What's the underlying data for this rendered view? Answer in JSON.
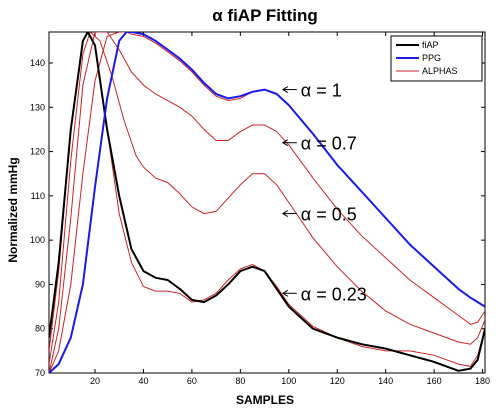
{
  "chart_data": {
    "type": "line",
    "title": "α fiAP Fitting",
    "xlabel": "SAMPLES",
    "ylabel": "Normalized mmHg",
    "xlim": [
      1,
      181
    ],
    "ylim": [
      70,
      147
    ],
    "x_ticks": [
      20,
      40,
      60,
      80,
      100,
      120,
      140,
      160,
      180
    ],
    "y_ticks": [
      70,
      80,
      90,
      100,
      110,
      120,
      130,
      140
    ],
    "grid": false,
    "legend_position": "top-right",
    "colors": {
      "fiAP": "#000000",
      "PPG": "#1a1ae6",
      "ALPHAS": "#cc2222"
    },
    "series": [
      {
        "name": "fiAP",
        "color": "#000000",
        "x": [
          1,
          5,
          10,
          15,
          17,
          20,
          25,
          30,
          35,
          40,
          45,
          50,
          55,
          60,
          65,
          70,
          75,
          80,
          85,
          90,
          95,
          100,
          110,
          120,
          130,
          140,
          150,
          160,
          170,
          175,
          178,
          181
        ],
        "y": [
          78,
          95,
          125,
          145,
          147,
          144,
          125,
          110,
          98,
          93,
          91.5,
          91,
          89,
          86.5,
          86,
          87.5,
          90,
          93,
          94,
          93,
          89,
          85,
          80,
          78,
          76.5,
          75.5,
          74,
          72.5,
          70.5,
          71,
          73,
          80
        ]
      },
      {
        "name": "PPG",
        "color": "#1a1ae6",
        "x": [
          1,
          5,
          10,
          15,
          20,
          25,
          30,
          33,
          35,
          40,
          45,
          50,
          55,
          60,
          65,
          70,
          75,
          80,
          85,
          90,
          95,
          100,
          110,
          120,
          130,
          140,
          150,
          160,
          170,
          175,
          178,
          181
        ],
        "y": [
          70,
          72,
          78,
          90,
          112,
          132,
          145,
          147,
          147,
          146.5,
          145,
          143,
          141,
          138.5,
          135.5,
          133,
          132,
          132.5,
          133.5,
          134,
          133,
          130.5,
          124,
          117,
          111,
          105,
          99,
          94,
          89,
          87,
          86,
          85
        ]
      }
    ],
    "alphas": {
      "name": "ALPHAS",
      "color": "#cc2222",
      "curves": [
        {
          "alpha": "1",
          "x": [
            1,
            5,
            10,
            15,
            20,
            25,
            30,
            33,
            35,
            40,
            45,
            50,
            55,
            60,
            65,
            70,
            75,
            80,
            85,
            90,
            95,
            100,
            110,
            120,
            130,
            140,
            150,
            160,
            170,
            175,
            178,
            181
          ],
          "y": [
            70,
            75,
            90,
            115,
            136,
            146,
            147,
            147,
            146.5,
            146,
            144.5,
            142.5,
            140.5,
            138,
            135,
            132.5,
            131.5,
            132,
            133.5,
            134,
            133,
            130.5,
            124,
            117,
            111,
            105,
            99,
            94,
            89,
            87,
            86,
            85
          ]
        },
        {
          "alpha": "0.7",
          "x": [
            1,
            5,
            10,
            15,
            20,
            25,
            30,
            35,
            40,
            45,
            50,
            55,
            60,
            65,
            70,
            75,
            80,
            85,
            90,
            95,
            100,
            110,
            120,
            130,
            140,
            150,
            160,
            170,
            175,
            178,
            181
          ],
          "y": [
            70,
            80,
            105,
            135,
            147,
            147,
            143,
            138,
            135,
            133,
            131.5,
            130,
            128,
            125,
            122.5,
            122.5,
            124.5,
            126,
            126,
            124.5,
            121.5,
            114,
            107,
            101,
            96,
            91,
            87,
            83,
            81,
            81.5,
            84
          ]
        },
        {
          "alpha": "0.5",
          "x": [
            1,
            5,
            10,
            15,
            18,
            22,
            27,
            32,
            37,
            40,
            45,
            50,
            55,
            60,
            65,
            70,
            75,
            80,
            85,
            90,
            95,
            100,
            110,
            120,
            130,
            140,
            150,
            160,
            170,
            175,
            178,
            181
          ],
          "y": [
            72,
            86,
            118,
            142,
            147,
            145,
            137,
            127,
            119,
            116.5,
            114,
            113,
            110.5,
            107.5,
            106,
            106.5,
            109.5,
            112.5,
            115,
            115,
            112.5,
            108.5,
            100.5,
            94,
            88.5,
            84,
            81,
            79,
            77,
            76.5,
            78,
            82
          ]
        },
        {
          "alpha": "0.23",
          "x": [
            1,
            5,
            10,
            15,
            17,
            20,
            25,
            30,
            35,
            40,
            45,
            50,
            55,
            60,
            65,
            70,
            75,
            80,
            85,
            90,
            95,
            100,
            110,
            120,
            130,
            140,
            150,
            160,
            170,
            175,
            178,
            181
          ],
          "y": [
            75,
            93,
            125,
            145,
            147,
            144,
            125,
            106,
            95,
            89.5,
            88.5,
            88.5,
            88,
            86,
            86.5,
            88,
            91,
            93.5,
            94.5,
            93,
            89.5,
            85.5,
            80.5,
            78,
            76,
            75,
            75,
            74,
            72,
            71.5,
            74,
            80
          ]
        }
      ]
    },
    "annotations": [
      {
        "text": "α = 1",
        "x": 100,
        "y": 134
      },
      {
        "text": "α = 0.7",
        "x": 100,
        "y": 122
      },
      {
        "text": "α = 0.5",
        "x": 100,
        "y": 106
      },
      {
        "text": "α = 0.23",
        "x": 100,
        "y": 88
      }
    ]
  }
}
